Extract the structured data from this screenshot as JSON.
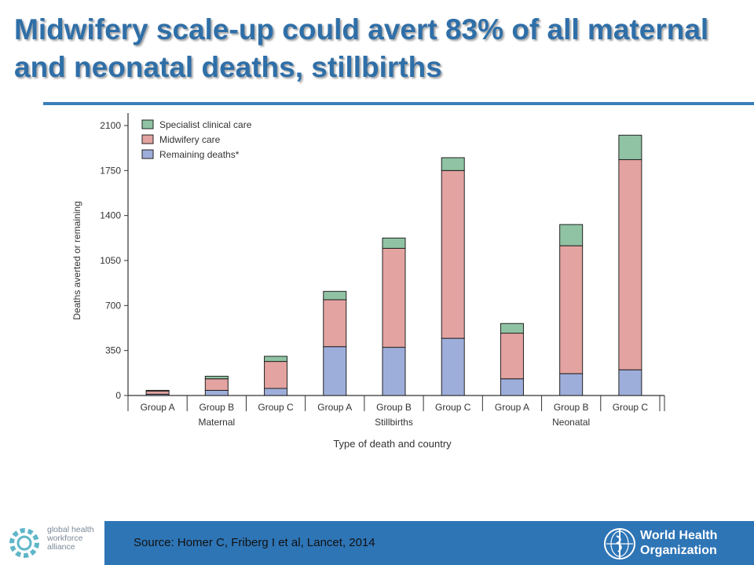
{
  "title": "Midwifery scale-up could avert 83% of all maternal and neonatal deaths, stillbirths",
  "source": "Source: Homer C, Friberg I et al, Lancet, 2014",
  "footer": {
    "ghwa_lines": [
      "global health",
      "workforce",
      "alliance"
    ],
    "who_lines": [
      "World Health",
      "Organization"
    ]
  },
  "colors": {
    "title": "#2f6fa8",
    "specialist": "#8fc3a3",
    "midwifery": "#e3a3a0",
    "remaining": "#9eaedb",
    "footer_bar": "#2e75b6"
  },
  "chart_data": {
    "type": "bar",
    "stacked": true,
    "categories": [
      "Group A",
      "Group B",
      "Group C",
      "Group A",
      "Group B",
      "Group C",
      "Group A",
      "Group B",
      "Group C"
    ],
    "category_groups": [
      {
        "label": "Maternal",
        "count": 3
      },
      {
        "label": "Stillbirths",
        "count": 3
      },
      {
        "label": "Neonatal",
        "count": 3
      }
    ],
    "series": [
      {
        "name": "Remaining deaths*",
        "color": "#9eaedb",
        "values": [
          10,
          40,
          55,
          380,
          375,
          445,
          130,
          170,
          200
        ]
      },
      {
        "name": "Midwifery care",
        "color": "#e3a3a0",
        "values": [
          25,
          90,
          210,
          365,
          770,
          1305,
          355,
          995,
          1635
        ]
      },
      {
        "name": "Specialist clinical care",
        "color": "#8fc3a3",
        "values": [
          5,
          20,
          40,
          65,
          80,
          100,
          75,
          165,
          190
        ]
      }
    ],
    "xlabel": "Type of death and country",
    "ylabel": "Deaths averted or remaining",
    "yticks": [
      0,
      350,
      700,
      1050,
      1400,
      1750,
      2100
    ],
    "ylim": [
      0,
      2100
    ],
    "legend_position": "top-left",
    "legend_order": [
      "Specialist clinical care",
      "Midwifery care",
      "Remaining deaths*"
    ]
  }
}
